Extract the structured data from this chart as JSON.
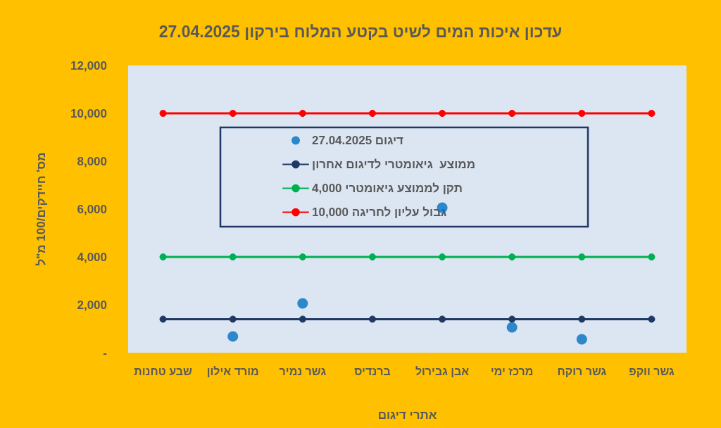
{
  "chart_data": {
    "type": "line",
    "title": "עדכון איכות המים לשיט בקטע המלוח בירקון 27.04.2025",
    "xlabel": "אתרי דיגום",
    "ylabel": "מס' חיידקים/100 מ\"ל",
    "categories": [
      "שבע טחנות",
      "מורד אילון",
      "גשר נמיר",
      "ברנדיס",
      "אבן גבירול",
      "מרכז ימי",
      "גשר רוקח",
      "גשר ווקפ"
    ],
    "series": [
      {
        "name": "דיגום 27.04.2025",
        "type": "scatter",
        "color": "#0070c0",
        "values": [
          null,
          680,
          2060,
          null,
          6060,
          1060,
          560,
          null
        ]
      },
      {
        "name": "ממוצע  גיאומטרי לדיגום אחרון",
        "type": "line",
        "color": "#1f3864",
        "values": [
          1400,
          1400,
          1400,
          1400,
          1400,
          1400,
          1400,
          1400
        ]
      },
      {
        "name": "תקן לממוצע גיאומטרי 4,000",
        "type": "line",
        "color": "#00b050",
        "values": [
          4000,
          4000,
          4000,
          4000,
          4000,
          4000,
          4000,
          4000
        ]
      },
      {
        "name": "גבול עליון לחריגה 10,000",
        "type": "line",
        "color": "#ff0000",
        "values": [
          10000,
          10000,
          10000,
          10000,
          10000,
          10000,
          10000,
          10000
        ]
      }
    ],
    "ylim": [
      0,
      12000
    ],
    "yticks": [
      {
        "value": 0,
        "label": "-"
      },
      {
        "value": 2000,
        "label": "2,000"
      },
      {
        "value": 4000,
        "label": "4,000"
      },
      {
        "value": 6000,
        "label": "6,000"
      },
      {
        "value": 8000,
        "label": "8,000"
      },
      {
        "value": 10000,
        "label": "10,000"
      },
      {
        "value": 12000,
        "label": "12,000"
      }
    ],
    "grid": false,
    "legend": "top",
    "marker": "circle",
    "line_style": "solid"
  }
}
